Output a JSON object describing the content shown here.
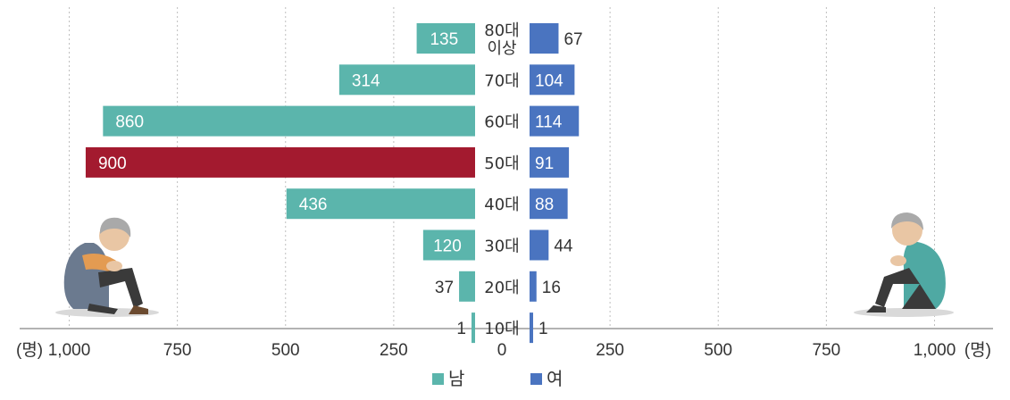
{
  "chart_data": {
    "type": "bar",
    "orientation": "horizontal-diverging",
    "categories": [
      "80대\n이상",
      "70대",
      "60대",
      "50대",
      "40대",
      "30대",
      "20대",
      "10대"
    ],
    "series": [
      {
        "name": "남",
        "values": [
          135,
          314,
          860,
          900,
          436,
          120,
          37,
          1
        ]
      },
      {
        "name": "여",
        "values": [
          67,
          104,
          114,
          91,
          88,
          44,
          16,
          1
        ]
      }
    ],
    "highlight": {
      "series": "남",
      "category": "50대",
      "color": "#a31a2f"
    },
    "xlim": [
      0,
      1000
    ],
    "ticks": [
      1000,
      750,
      500,
      250,
      0,
      250,
      500,
      750,
      1000
    ],
    "tick_labels": [
      "1,000",
      "750",
      "500",
      "250",
      "0",
      "250",
      "500",
      "750",
      "1,000"
    ],
    "unit_label": "(명)",
    "grid": true,
    "legend_position": "bottom-center",
    "legend": [
      {
        "label": "남",
        "color": "#5bb5ac"
      },
      {
        "label": "여",
        "color": "#4a74c0"
      }
    ],
    "colors": {
      "male": "#5bb5ac",
      "female": "#4a74c0",
      "highlight": "#a31a2f"
    }
  },
  "illustrations": {
    "left": "sad-elderly-man-illustration",
    "right": "sad-elderly-woman-illustration"
  }
}
